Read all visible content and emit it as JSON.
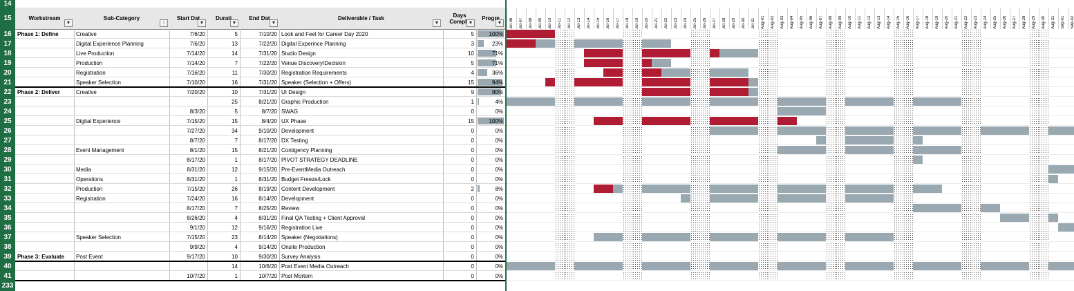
{
  "header": {
    "row_num": "15",
    "top_row_num": "14",
    "bottom_row_num": "233",
    "columns": {
      "workstream": "Workstream",
      "sub_category": "Sub-Category",
      "start": "Start Dat",
      "duration": "Durati",
      "end": "End Dat",
      "deliverable": "Deliverable / Task",
      "days": "Days Comple",
      "progress": "Progre"
    }
  },
  "colors": {
    "complete": "#b01c33",
    "planned": "#9aa9b1",
    "row_header": "#1f6e43",
    "progress": "#9aa9b1"
  },
  "dates": [
    "Jul-06",
    "Jul-07",
    "Jul-08",
    "Jul-09",
    "Jul-10",
    "Jul-11",
    "Jul-12",
    "Jul-13",
    "Jul-14",
    "Jul-15",
    "Jul-16",
    "Jul-17",
    "Jul-18",
    "Jul-19",
    "Jul-20",
    "Jul-21",
    "Jul-22",
    "Jul-23",
    "Jul-24",
    "Jul-25",
    "Jul-26",
    "Jul-27",
    "Jul-28",
    "Jul-29",
    "Jul-30",
    "Jul-31",
    "Aug-01",
    "Aug-02",
    "Aug-03",
    "Aug-04",
    "Aug-05",
    "Aug-06",
    "Aug-07",
    "Aug-08",
    "Aug-09",
    "Aug-10",
    "Aug-11",
    "Aug-12",
    "Aug-13",
    "Aug-14",
    "Aug-15",
    "Aug-16",
    "Aug-17",
    "Aug-18",
    "Aug-19",
    "Aug-20",
    "Aug-21",
    "Aug-22",
    "Aug-23",
    "Aug-24",
    "Aug-25",
    "Aug-26",
    "Aug-27",
    "Aug-28",
    "Aug-29",
    "Aug-30",
    "Aug-31",
    "Sep-01",
    "Sep-02"
  ],
  "rows": [
    {
      "num": "16",
      "ws": "Phase 1: Define",
      "sub": "Creative",
      "start": "7/6/20",
      "dur": "5",
      "end": "7/10/20",
      "task": "Look and Feel for Career Day 2020",
      "days": "5",
      "prog": "100%",
      "pv": 1.0,
      "segs": [
        [
          0,
          5,
          "c"
        ]
      ]
    },
    {
      "num": "17",
      "ws": "",
      "sub": "Digital Experience Planning",
      "start": "7/6/20",
      "dur": "13",
      "end": "7/22/20",
      "task": "Digital Experince Planning",
      "days": "3",
      "prog": "23%",
      "pv": 0.23,
      "segs": [
        [
          0,
          3,
          "c"
        ],
        [
          3,
          5,
          "p"
        ],
        [
          7,
          12,
          "p"
        ],
        [
          14,
          17,
          "p"
        ]
      ]
    },
    {
      "num": "18",
      "ws": "",
      "sub": "Live Production",
      "start": "7/14/20",
      "dur": "14",
      "end": "7/31/20",
      "task": "Studio Design",
      "days": "10",
      "prog": "71%",
      "pv": 0.71,
      "segs": [
        [
          8,
          12,
          "c"
        ],
        [
          14,
          19,
          "c"
        ],
        [
          21,
          22,
          "c"
        ],
        [
          22,
          26,
          "p"
        ]
      ]
    },
    {
      "num": "19",
      "ws": "",
      "sub": "Production",
      "start": "7/14/20",
      "dur": "7",
      "end": "7/22/20",
      "task": "Venue Discovery/Decision",
      "days": "5",
      "prog": "71%",
      "pv": 0.71,
      "segs": [
        [
          8,
          12,
          "c"
        ],
        [
          14,
          15,
          "c"
        ],
        [
          15,
          17,
          "p"
        ]
      ]
    },
    {
      "num": "20",
      "ws": "",
      "sub": "Registration",
      "start": "7/16/20",
      "dur": "11",
      "end": "7/30/20",
      "task": "Registration Requirements",
      "days": "4",
      "prog": "36%",
      "pv": 0.36,
      "segs": [
        [
          10,
          12,
          "c"
        ],
        [
          14,
          16,
          "c"
        ],
        [
          16,
          19,
          "p"
        ],
        [
          21,
          25,
          "p"
        ]
      ]
    },
    {
      "num": "21",
      "ws": "",
      "sub": "Speaker Selection",
      "start": "7/10/20",
      "dur": "16",
      "end": "7/31/20",
      "task": "Speaker (Selection + Offers)",
      "days": "15",
      "prog": "94%",
      "pv": 0.94,
      "segs": [
        [
          4,
          5,
          "c"
        ],
        [
          7,
          12,
          "c"
        ],
        [
          14,
          19,
          "c"
        ],
        [
          21,
          25,
          "c"
        ],
        [
          25,
          26,
          "p"
        ]
      ]
    },
    {
      "num": "22",
      "ws": "Phase 2: Deliver",
      "sub": "Creative",
      "start": "7/20/20",
      "dur": "10",
      "end": "7/31/20",
      "task": "UI Design",
      "days": "9",
      "prog": "90%",
      "pv": 0.9,
      "segs": [
        [
          14,
          19,
          "c"
        ],
        [
          21,
          25,
          "c"
        ],
        [
          25,
          26,
          "p"
        ]
      ]
    },
    {
      "num": "23",
      "ws": "",
      "sub": "",
      "start": "",
      "dur": "25",
      "end": "8/21/20",
      "task": "Graphic Production",
      "days": "1",
      "prog": "4%",
      "pv": 0.04,
      "segs": [
        [
          0,
          5,
          "p"
        ],
        [
          7,
          12,
          "p"
        ],
        [
          14,
          19,
          "p"
        ],
        [
          21,
          26,
          "p"
        ],
        [
          28,
          33,
          "p"
        ],
        [
          35,
          40,
          "p"
        ],
        [
          42,
          47,
          "p"
        ]
      ]
    },
    {
      "num": "24",
      "ws": "",
      "sub": "",
      "start": "8/3/20",
      "dur": "5",
      "end": "8/7/20",
      "task": "SWAG",
      "days": "0",
      "prog": "0%",
      "pv": 0,
      "segs": [
        [
          28,
          33,
          "p"
        ]
      ]
    },
    {
      "num": "25",
      "ws": "",
      "sub": "Digital Experience",
      "start": "7/15/20",
      "dur": "15",
      "end": "8/4/20",
      "task": "UX Phase",
      "days": "15",
      "prog": "100%",
      "pv": 1.0,
      "segs": [
        [
          9,
          12,
          "c"
        ],
        [
          14,
          19,
          "c"
        ],
        [
          21,
          26,
          "c"
        ],
        [
          28,
          30,
          "c"
        ]
      ]
    },
    {
      "num": "26",
      "ws": "",
      "sub": "",
      "start": "7/27/20",
      "dur": "34",
      "end": "9/10/20",
      "task": "Development",
      "days": "0",
      "prog": "0%",
      "pv": 0,
      "segs": [
        [
          21,
          26,
          "p"
        ],
        [
          28,
          33,
          "p"
        ],
        [
          35,
          40,
          "p"
        ],
        [
          42,
          47,
          "p"
        ],
        [
          49,
          54,
          "p"
        ],
        [
          56,
          59,
          "p"
        ]
      ]
    },
    {
      "num": "27",
      "ws": "",
      "sub": "",
      "start": "8/7/20",
      "dur": "7",
      "end": "8/17/20",
      "task": "DX Testing",
      "days": "0",
      "prog": "0%",
      "pv": 0,
      "segs": [
        [
          32,
          33,
          "p"
        ],
        [
          35,
          40,
          "p"
        ],
        [
          42,
          43,
          "p"
        ]
      ]
    },
    {
      "num": "28",
      "ws": "",
      "sub": "Event Management",
      "start": "8/1/20",
      "dur": "15",
      "end": "8/21/20",
      "task": "Contigency Planning",
      "days": "0",
      "prog": "0%",
      "pv": 0,
      "segs": [
        [
          28,
          33,
          "p"
        ],
        [
          35,
          40,
          "p"
        ],
        [
          42,
          47,
          "p"
        ]
      ]
    },
    {
      "num": "29",
      "ws": "",
      "sub": "",
      "start": "8/17/20",
      "dur": "1",
      "end": "8/17/20",
      "task": "PIVOT STRATEGY DEADLINE",
      "days": "0",
      "prog": "0%",
      "pv": 0,
      "segs": [
        [
          42,
          43,
          "p"
        ]
      ]
    },
    {
      "num": "30",
      "ws": "",
      "sub": "Media",
      "start": "8/31/20",
      "dur": "12",
      "end": "9/15/20",
      "task": "Pre-EventMedia Outreach",
      "days": "0",
      "prog": "0%",
      "pv": 0,
      "segs": [
        [
          56,
          59,
          "p"
        ]
      ]
    },
    {
      "num": "31",
      "ws": "",
      "sub": "Operations",
      "start": "8/31/20",
      "dur": "1",
      "end": "8/31/20",
      "task": "Budget Freeze/Lock",
      "days": "0",
      "prog": "0%",
      "pv": 0,
      "segs": [
        [
          56,
          57,
          "p"
        ]
      ]
    },
    {
      "num": "32",
      "ws": "",
      "sub": "Production",
      "start": "7/15/20",
      "dur": "26",
      "end": "8/19/20",
      "task": "Content Development",
      "days": "2",
      "prog": "8%",
      "pv": 0.08,
      "segs": [
        [
          9,
          11,
          "c"
        ],
        [
          11,
          12,
          "p"
        ],
        [
          14,
          19,
          "p"
        ],
        [
          21,
          26,
          "p"
        ],
        [
          28,
          33,
          "p"
        ],
        [
          35,
          40,
          "p"
        ],
        [
          42,
          45,
          "p"
        ]
      ]
    },
    {
      "num": "33",
      "ws": "",
      "sub": "Registration",
      "start": "7/24/20",
      "dur": "16",
      "end": "8/14/20",
      "task": "Development",
      "days": "0",
      "prog": "0%",
      "pv": 0,
      "segs": [
        [
          18,
          19,
          "p"
        ],
        [
          21,
          26,
          "p"
        ],
        [
          28,
          33,
          "p"
        ],
        [
          35,
          40,
          "p"
        ]
      ]
    },
    {
      "num": "34",
      "ws": "",
      "sub": "",
      "start": "8/17/20",
      "dur": "7",
      "end": "8/25/20",
      "task": "Review",
      "days": "0",
      "prog": "0%",
      "pv": 0,
      "segs": [
        [
          42,
          47,
          "p"
        ],
        [
          49,
          51,
          "p"
        ]
      ]
    },
    {
      "num": "35",
      "ws": "",
      "sub": "",
      "start": "8/26/20",
      "dur": "4",
      "end": "8/31/20",
      "task": "Final QA Testing + Client Approval",
      "days": "0",
      "prog": "0%",
      "pv": 0,
      "segs": [
        [
          51,
          54,
          "p"
        ],
        [
          56,
          57,
          "p"
        ]
      ]
    },
    {
      "num": "36",
      "ws": "",
      "sub": "",
      "start": "9/1/20",
      "dur": "12",
      "end": "9/16/20",
      "task": "Registration Live",
      "days": "0",
      "prog": "0%",
      "pv": 0,
      "segs": [
        [
          57,
          59,
          "p"
        ]
      ]
    },
    {
      "num": "37",
      "ws": "",
      "sub": "Speaker Selection",
      "start": "7/15/20",
      "dur": "23",
      "end": "8/14/20",
      "task": "Speaker (Negotiations)",
      "days": "0",
      "prog": "0%",
      "pv": 0,
      "segs": [
        [
          9,
          12,
          "p"
        ],
        [
          14,
          19,
          "p"
        ],
        [
          21,
          26,
          "p"
        ],
        [
          28,
          33,
          "p"
        ],
        [
          35,
          40,
          "p"
        ]
      ]
    },
    {
      "num": "38",
      "ws": "",
      "sub": "",
      "start": "9/9/20",
      "dur": "4",
      "end": "9/14/20",
      "task": "Onsite Production",
      "days": "0",
      "prog": "0%",
      "pv": 0,
      "segs": []
    },
    {
      "num": "39",
      "ws": "Phase 3: Evaluate",
      "sub": "Post Event",
      "start": "9/17/20",
      "dur": "10",
      "end": "9/30/20",
      "task": "Survey Analysis",
      "days": "0",
      "prog": "0%",
      "pv": 0,
      "segs": []
    },
    {
      "num": "40",
      "ws": "",
      "sub": "",
      "start": "",
      "dur": "14",
      "end": "10/6/20",
      "task": "Post Event Media Outreach",
      "days": "0",
      "prog": "0%",
      "pv": 0,
      "segs": [
        [
          0,
          5,
          "p"
        ],
        [
          7,
          12,
          "p"
        ],
        [
          14,
          19,
          "p"
        ],
        [
          21,
          26,
          "p"
        ],
        [
          28,
          33,
          "p"
        ],
        [
          35,
          40,
          "p"
        ],
        [
          42,
          47,
          "p"
        ],
        [
          49,
          54,
          "p"
        ],
        [
          56,
          59,
          "p"
        ]
      ]
    },
    {
      "num": "41",
      "ws": "",
      "sub": "",
      "start": "10/7/20",
      "dur": "1",
      "end": "10/7/20",
      "task": "Post Mortem",
      "days": "0",
      "prog": "0%",
      "pv": 0,
      "segs": []
    }
  ]
}
